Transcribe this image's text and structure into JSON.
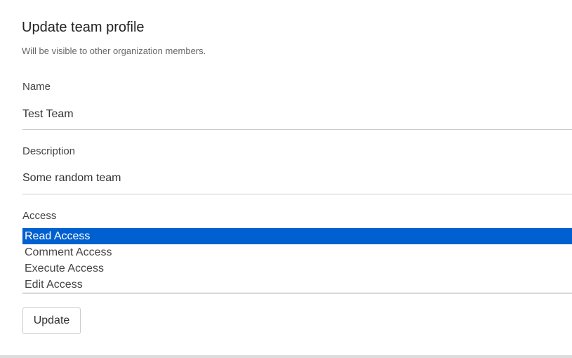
{
  "header": {
    "title": "Update team profile",
    "subtitle": "Will be visible to other organization members."
  },
  "form": {
    "name": {
      "label": "Name",
      "value": "Test Team"
    },
    "description": {
      "label": "Description",
      "value": "Some random team"
    },
    "access": {
      "label": "Access",
      "options": [
        "Read Access",
        "Comment Access",
        "Execute Access",
        "Edit Access"
      ],
      "selected": "Read Access",
      "selected_color": "#0060d0"
    },
    "submit_label": "Update"
  }
}
